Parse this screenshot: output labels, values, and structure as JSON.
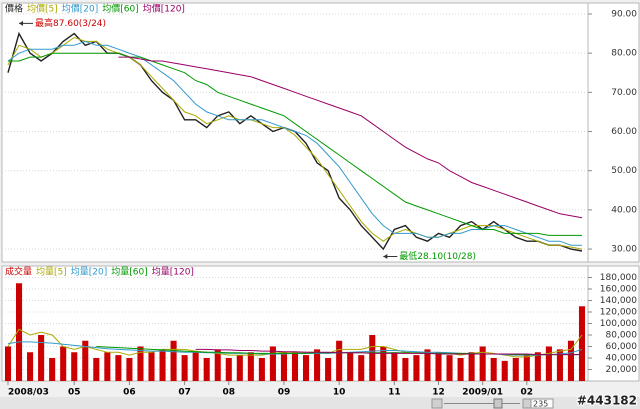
{
  "chart_data": [
    {
      "type": "line",
      "legend": "top-left",
      "grid": true,
      "ylim": [
        26.7,
        92.8
      ],
      "yticks": [
        {
          "value": 30,
          "label": "30.00"
        },
        {
          "value": 40,
          "label": "40.00"
        },
        {
          "value": 50,
          "label": "50.00"
        },
        {
          "value": 60,
          "label": "60.00"
        },
        {
          "value": 70,
          "label": "70.00"
        },
        {
          "value": 80,
          "label": "80.00"
        },
        {
          "value": 90,
          "label": "90.00"
        }
      ],
      "annotations": [
        {
          "text": "最高87.60(3/24)",
          "value": 87.6
        },
        {
          "text": "最低28.10(10/28)",
          "value": 28.1
        }
      ],
      "series": [
        {
          "name": "價格",
          "color": "#222222",
          "values": [
            75,
            85,
            80,
            78,
            80,
            83,
            85,
            82,
            83,
            80,
            80,
            79,
            77,
            73,
            70,
            68,
            63,
            63,
            61,
            64,
            65,
            62,
            64,
            62,
            60,
            61,
            60,
            57,
            52,
            50,
            43,
            40,
            36,
            33,
            30,
            35,
            36,
            33,
            32,
            34,
            33,
            36,
            37,
            35,
            37,
            35,
            33,
            32,
            32,
            31,
            31,
            30,
            29.5
          ]
        },
        {
          "name": "均價[5]",
          "color": "#aaaa00",
          "values": [
            77,
            82,
            81,
            79,
            80,
            82,
            84,
            83,
            83,
            81,
            80,
            79,
            77,
            74,
            71,
            68,
            65,
            64,
            62,
            63,
            64,
            63,
            63,
            62,
            61,
            61,
            59,
            56,
            53,
            49,
            45,
            41,
            37,
            34,
            32,
            34,
            35,
            34,
            33,
            33,
            34,
            35,
            36,
            36,
            36,
            35,
            34,
            33,
            32,
            31,
            31,
            30.5,
            30
          ]
        },
        {
          "name": "均價[20]",
          "color": "#3399cc",
          "values": [
            78,
            80,
            81,
            81,
            81,
            82,
            82,
            83,
            82,
            82,
            81,
            80,
            79,
            77,
            75,
            73,
            70,
            67,
            65,
            64,
            63,
            63,
            63,
            63,
            62,
            61,
            60,
            59,
            57,
            54,
            51,
            47,
            43,
            39,
            36,
            34,
            34,
            34,
            33,
            33,
            34,
            34,
            35,
            35,
            36,
            36,
            35,
            34,
            33,
            32,
            32,
            31,
            31
          ]
        },
        {
          "name": "均價[60]",
          "color": "#009900",
          "values": [
            78,
            78,
            79,
            79,
            80,
            80,
            80,
            80,
            80,
            80,
            80,
            79,
            79,
            78,
            77,
            76,
            75,
            73,
            72,
            70,
            69,
            68,
            67,
            66,
            65,
            64,
            62,
            60,
            58,
            56,
            54,
            52,
            50,
            48,
            46,
            44,
            42,
            41,
            40,
            39,
            38,
            37,
            36,
            35,
            35,
            34,
            34,
            34,
            34,
            33.5,
            33.5,
            33.5,
            33.5
          ]
        },
        {
          "name": "均價[120]",
          "color": "#990066",
          "values": [
            null,
            null,
            null,
            null,
            null,
            null,
            null,
            null,
            null,
            null,
            79,
            79,
            78.5,
            78,
            78,
            77.5,
            77,
            76.5,
            76,
            75.5,
            75,
            74.5,
            74,
            73,
            72,
            71,
            70,
            69,
            68,
            67,
            66,
            65,
            64,
            62,
            60,
            58,
            56,
            54.5,
            53,
            52,
            50,
            48.5,
            47,
            46,
            45,
            44,
            43,
            42,
            41,
            40,
            39,
            38.5,
            38
          ]
        }
      ]
    },
    {
      "type": "bar",
      "legend": "top-left",
      "grid": true,
      "categories": [
        "2008/03",
        null,
        null,
        null,
        null,
        null,
        "05",
        null,
        null,
        null,
        null,
        "06",
        null,
        null,
        null,
        null,
        "07",
        null,
        null,
        null,
        "08",
        null,
        null,
        null,
        null,
        "09",
        null,
        null,
        null,
        null,
        "10",
        null,
        null,
        null,
        null,
        "11",
        null,
        null,
        null,
        "12",
        null,
        null,
        null,
        "2009/01",
        null,
        null,
        null,
        "02",
        null,
        null,
        null,
        null,
        null
      ],
      "ylim": [
        0,
        200000
      ],
      "yticks": [
        {
          "value": 20000,
          "label": "20,000"
        },
        {
          "value": 40000,
          "label": "40,000"
        },
        {
          "value": 60000,
          "label": "60,000"
        },
        {
          "value": 80000,
          "label": "80,000"
        },
        {
          "value": 100000,
          "label": "100,000"
        },
        {
          "value": 120000,
          "label": "120,000"
        },
        {
          "value": 140000,
          "label": "140,000"
        },
        {
          "value": 160000,
          "label": "160,000"
        },
        {
          "value": 180000,
          "label": "180,000"
        }
      ],
      "series": [
        {
          "name": "成交量",
          "kind": "bar",
          "color": "#cc0000",
          "values": [
            60000,
            170000,
            50000,
            80000,
            40000,
            60000,
            50000,
            70000,
            40000,
            50000,
            45000,
            40000,
            60000,
            50000,
            55000,
            70000,
            45000,
            50000,
            40000,
            55000,
            40000,
            45000,
            50000,
            40000,
            60000,
            50000,
            50000,
            45000,
            55000,
            40000,
            70000,
            50000,
            45000,
            80000,
            60000,
            50000,
            40000,
            45000,
            55000,
            50000,
            45000,
            40000,
            50000,
            60000,
            40000,
            35000,
            40000,
            45000,
            50000,
            60000,
            55000,
            70000,
            130000
          ]
        },
        {
          "name": "均量[5]",
          "kind": "line",
          "color": "#aaaa00",
          "values": [
            60000,
            90000,
            80000,
            85000,
            80000,
            60000,
            55000,
            60000,
            55000,
            50000,
            50000,
            45000,
            50000,
            50000,
            55000,
            55000,
            55000,
            52000,
            50000,
            48000,
            45000,
            45000,
            45000,
            45000,
            48000,
            50000,
            50000,
            50000,
            50000,
            48000,
            55000,
            55000,
            55000,
            60000,
            60000,
            55000,
            50000,
            48000,
            48000,
            48000,
            48000,
            45000,
            48000,
            50000,
            48000,
            45000,
            42000,
            42000,
            45000,
            48000,
            52000,
            55000,
            80000
          ]
        },
        {
          "name": "均量[20]",
          "kind": "line",
          "color": "#3399cc",
          "values": [
            65000,
            68000,
            68000,
            67000,
            66000,
            64000,
            62000,
            60000,
            58000,
            56000,
            55000,
            54000,
            53000,
            52000,
            52000,
            51000,
            50000,
            50000,
            49000,
            49000,
            48000,
            48000,
            48000,
            47000,
            47000,
            47000,
            48000,
            48000,
            48000,
            48000,
            49000,
            50000,
            51000,
            52000,
            53000,
            53000,
            52000,
            51000,
            50000,
            50000,
            49000,
            48000,
            47000,
            47000,
            47000,
            46000,
            45000,
            45000,
            45000,
            46000,
            47000,
            49000,
            55000
          ]
        },
        {
          "name": "均量[60]",
          "kind": "line",
          "color": "#009900",
          "values": [
            null,
            null,
            null,
            null,
            null,
            null,
            null,
            null,
            60000,
            59000,
            58000,
            57000,
            56000,
            55000,
            54000,
            53000,
            52000,
            51000,
            50000,
            50000,
            49000,
            49000,
            48000,
            48000,
            48000,
            48000,
            48000,
            48000,
            49000,
            49000,
            49000,
            49000,
            49000,
            49000,
            49000,
            49000,
            49000,
            49000,
            48000,
            48000,
            48000,
            48000,
            48000,
            47000,
            47000,
            47000,
            46000,
            46000,
            46000,
            46000,
            46000,
            46000,
            46000
          ]
        },
        {
          "name": "均量[120]",
          "kind": "line",
          "color": "#990066",
          "values": [
            null,
            null,
            null,
            null,
            null,
            null,
            null,
            null,
            null,
            null,
            null,
            null,
            null,
            null,
            null,
            null,
            null,
            55000,
            55000,
            54000,
            54000,
            53000,
            53000,
            52000,
            52000,
            51000,
            51000,
            50000,
            50000,
            50000,
            49000,
            49000,
            49000,
            48000,
            48000,
            48000,
            48000,
            48000,
            48000,
            47000,
            47000,
            47000,
            47000,
            47000,
            47000,
            47000,
            47000,
            47000,
            46000,
            46000,
            46000,
            46000,
            46000
          ]
        }
      ]
    }
  ],
  "ui": {
    "zoom": "235",
    "watermark": "#443182"
  }
}
